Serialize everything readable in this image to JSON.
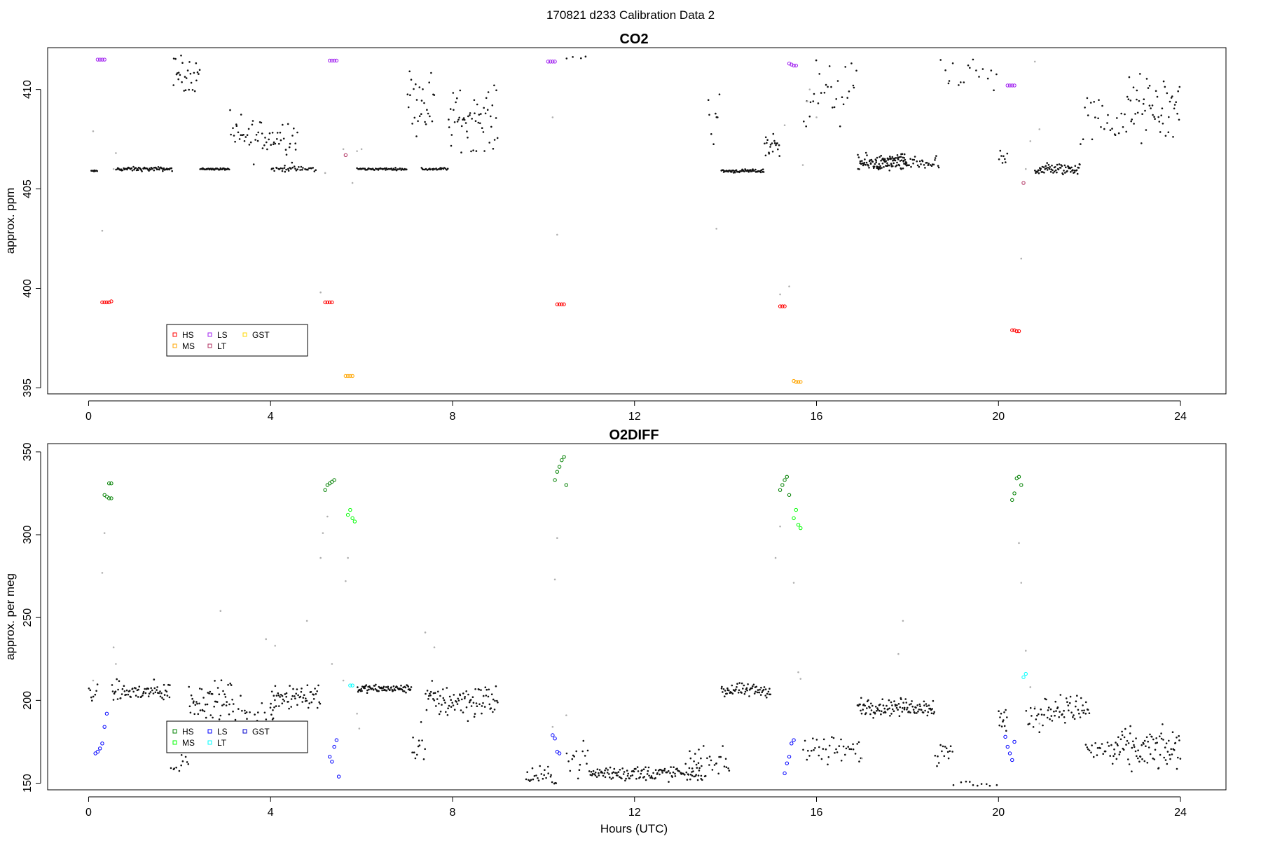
{
  "figure": {
    "title": "170821   d233   Calibration Data 2"
  },
  "legend_keys": [
    "HS",
    "MS",
    "LS",
    "LT",
    "GST"
  ],
  "chart_data": [
    {
      "type": "scatter",
      "title": "CO2",
      "xlabel": "",
      "ylabel": "approx. ppm",
      "xlim": [
        0,
        24
      ],
      "ylim": [
        394.7,
        412.1
      ],
      "xticks": [
        0,
        4,
        8,
        12,
        16,
        20,
        24
      ],
      "yticks": [
        395,
        400,
        405,
        410
      ],
      "legend": {
        "placement": "lower-left",
        "entries": [
          {
            "label": "HS",
            "color": "#ff0000"
          },
          {
            "label": "MS",
            "color": "#ffa500"
          },
          {
            "label": "LS",
            "color": "#a020f0"
          },
          {
            "label": "LT",
            "color": "#b03060"
          },
          {
            "label": "GST",
            "color": "#ffd700"
          }
        ]
      },
      "calibration_series": [
        {
          "name": "HS",
          "color": "#ff0000",
          "points": [
            [
              0.3,
              399.3
            ],
            [
              0.35,
              399.3
            ],
            [
              0.4,
              399.3
            ],
            [
              0.45,
              399.3
            ],
            [
              0.5,
              399.35
            ],
            [
              5.2,
              399.3
            ],
            [
              5.25,
              399.3
            ],
            [
              5.3,
              399.3
            ],
            [
              5.35,
              399.3
            ],
            [
              10.3,
              399.2
            ],
            [
              10.35,
              399.2
            ],
            [
              10.4,
              399.2
            ],
            [
              10.45,
              399.2
            ],
            [
              15.2,
              399.1
            ],
            [
              15.25,
              399.1
            ],
            [
              15.3,
              399.1
            ],
            [
              20.3,
              397.9
            ],
            [
              20.35,
              397.9
            ],
            [
              20.4,
              397.85
            ],
            [
              20.45,
              397.85
            ]
          ]
        },
        {
          "name": "MS",
          "color": "#ffa500",
          "points": [
            [
              5.65,
              395.6
            ],
            [
              5.7,
              395.6
            ],
            [
              5.75,
              395.6
            ],
            [
              5.8,
              395.6
            ],
            [
              15.5,
              395.35
            ],
            [
              15.55,
              395.3
            ],
            [
              15.6,
              395.3
            ],
            [
              15.65,
              395.3
            ]
          ]
        },
        {
          "name": "LS",
          "color": "#a020f0",
          "points": [
            [
              0.2,
              411.5
            ],
            [
              0.25,
              411.5
            ],
            [
              0.3,
              411.5
            ],
            [
              0.35,
              411.5
            ],
            [
              5.3,
              411.45
            ],
            [
              5.35,
              411.45
            ],
            [
              5.4,
              411.45
            ],
            [
              5.45,
              411.45
            ],
            [
              10.1,
              411.4
            ],
            [
              10.15,
              411.4
            ],
            [
              10.2,
              411.4
            ],
            [
              10.25,
              411.4
            ],
            [
              15.4,
              411.3
            ],
            [
              15.45,
              411.25
            ],
            [
              15.5,
              411.2
            ],
            [
              15.55,
              411.2
            ],
            [
              20.2,
              410.2
            ],
            [
              20.25,
              410.2
            ],
            [
              20.3,
              410.2
            ],
            [
              20.35,
              410.2
            ]
          ]
        },
        {
          "name": "LT",
          "color": "#b03060",
          "points": [
            [
              5.65,
              406.7
            ],
            [
              20.55,
              405.3
            ]
          ]
        }
      ],
      "ambient_segments": [
        {
          "t0": 0.05,
          "t1": 0.2,
          "base": 405.9,
          "spread": 0.05,
          "n": 8
        },
        {
          "t0": 0.6,
          "t1": 1.85,
          "base": 406.0,
          "spread": 0.15,
          "n": 70
        },
        {
          "t0": 1.85,
          "t1": 2.45,
          "base": 410.8,
          "spread": 1.3,
          "n": 28
        },
        {
          "t0": 2.45,
          "t1": 3.1,
          "base": 406.0,
          "spread": 0.07,
          "n": 40
        },
        {
          "t0": 3.1,
          "t1": 4.6,
          "base": 407.6,
          "spread": 1.7,
          "n": 60
        },
        {
          "t0": 4.0,
          "t1": 5.0,
          "base": 406.0,
          "spread": 0.2,
          "n": 38
        },
        {
          "t0": 5.9,
          "t1": 7.0,
          "base": 406.0,
          "spread": 0.08,
          "n": 55
        },
        {
          "t0": 7.0,
          "t1": 7.6,
          "base": 409.5,
          "spread": 2.3,
          "n": 28
        },
        {
          "t0": 7.3,
          "t1": 7.9,
          "base": 406.0,
          "spread": 0.1,
          "n": 26
        },
        {
          "t0": 7.9,
          "t1": 9.0,
          "base": 408.5,
          "spread": 2.2,
          "n": 55
        },
        {
          "t0": 10.5,
          "t1": 11.0,
          "base": 411.6,
          "spread": 0.2,
          "n": 4
        },
        {
          "t0": 13.6,
          "t1": 13.9,
          "base": 409.0,
          "spread": 2.5,
          "n": 8
        },
        {
          "t0": 13.9,
          "t1": 14.85,
          "base": 405.9,
          "spread": 0.12,
          "n": 60
        },
        {
          "t0": 14.85,
          "t1": 15.2,
          "base": 407.2,
          "spread": 1.2,
          "n": 20
        },
        {
          "t0": 15.7,
          "t1": 16.9,
          "base": 409.8,
          "spread": 2.3,
          "n": 30
        },
        {
          "t0": 16.9,
          "t1": 18.0,
          "base": 406.3,
          "spread": 0.6,
          "n": 90
        },
        {
          "t0": 17.3,
          "t1": 18.7,
          "base": 406.3,
          "spread": 0.6,
          "n": 60
        },
        {
          "t0": 18.7,
          "t1": 20.0,
          "base": 410.5,
          "spread": 1.5,
          "n": 18
        },
        {
          "t0": 20.0,
          "t1": 20.2,
          "base": 406.5,
          "spread": 0.8,
          "n": 8
        },
        {
          "t0": 20.8,
          "t1": 21.8,
          "base": 406.0,
          "spread": 0.45,
          "n": 70
        },
        {
          "t0": 21.8,
          "t1": 22.8,
          "base": 408.5,
          "spread": 2.0,
          "n": 25
        },
        {
          "t0": 22.8,
          "t1": 24.0,
          "base": 409.0,
          "spread": 2.5,
          "n": 55
        }
      ],
      "transition_points": [
        [
          0.1,
          407.9
        ],
        [
          0.3,
          402.9
        ],
        [
          0.55,
          406.0
        ],
        [
          0.6,
          406.8
        ],
        [
          5.1,
          399.8
        ],
        [
          5.2,
          405.8
        ],
        [
          5.6,
          407.0
        ],
        [
          5.8,
          405.3
        ],
        [
          5.9,
          406.9
        ],
        [
          6.0,
          407.0
        ],
        [
          10.2,
          408.6
        ],
        [
          10.3,
          402.7
        ],
        [
          13.8,
          403.0
        ],
        [
          15.2,
          399.7
        ],
        [
          15.3,
          408.2
        ],
        [
          15.4,
          400.1
        ],
        [
          15.7,
          406.2
        ],
        [
          15.8,
          409.4
        ],
        [
          15.85,
          410.0
        ],
        [
          16.0,
          408.6
        ],
        [
          20.5,
          401.5
        ],
        [
          20.6,
          406.0
        ],
        [
          20.7,
          407.4
        ],
        [
          20.8,
          411.4
        ],
        [
          20.9,
          408.0
        ]
      ]
    },
    {
      "type": "scatter",
      "title": "O2DIFF",
      "xlabel": "Hours (UTC)",
      "ylabel": "approx. per meg",
      "xlim": [
        -0.9,
        25.0
      ],
      "ylim": [
        146,
        355
      ],
      "xticks": [
        0,
        4,
        8,
        12,
        16,
        20,
        24
      ],
      "yticks": [
        150,
        200,
        250,
        300,
        350
      ],
      "legend": {
        "placement": "lower-left",
        "entries": [
          {
            "label": "HS",
            "color": "#008000"
          },
          {
            "label": "MS",
            "color": "#00ff00"
          },
          {
            "label": "LS",
            "color": "#0000ff"
          },
          {
            "label": "LT",
            "color": "#00ffff"
          },
          {
            "label": "GST",
            "color": "#0000cd"
          }
        ]
      },
      "calibration_series": [
        {
          "name": "HS",
          "color": "#008000",
          "points": [
            [
              0.35,
              324
            ],
            [
              0.4,
              323
            ],
            [
              0.45,
              322
            ],
            [
              0.5,
              322
            ],
            [
              0.45,
              331
            ],
            [
              0.5,
              331
            ],
            [
              5.2,
              327
            ],
            [
              5.25,
              330
            ],
            [
              5.3,
              331
            ],
            [
              5.35,
              332
            ],
            [
              5.4,
              333
            ],
            [
              10.25,
              333
            ],
            [
              10.3,
              338
            ],
            [
              10.35,
              341
            ],
            [
              10.4,
              345
            ],
            [
              10.45,
              347
            ],
            [
              10.5,
              330
            ],
            [
              15.2,
              327
            ],
            [
              15.25,
              330
            ],
            [
              15.3,
              333
            ],
            [
              15.35,
              335
            ],
            [
              15.4,
              324
            ],
            [
              20.3,
              321
            ],
            [
              20.35,
              325
            ],
            [
              20.4,
              334
            ],
            [
              20.45,
              335
            ],
            [
              20.5,
              330
            ]
          ]
        },
        {
          "name": "MS",
          "color": "#00ff00",
          "points": [
            [
              5.7,
              312
            ],
            [
              5.75,
              315
            ],
            [
              5.8,
              310
            ],
            [
              5.85,
              308
            ],
            [
              15.5,
              310
            ],
            [
              15.55,
              315
            ],
            [
              15.6,
              306
            ],
            [
              15.65,
              304
            ]
          ]
        },
        {
          "name": "LS",
          "color": "#0000ff",
          "points": [
            [
              0.15,
              168
            ],
            [
              0.2,
              169
            ],
            [
              0.25,
              171
            ],
            [
              0.3,
              174
            ],
            [
              0.35,
              184
            ],
            [
              0.4,
              192
            ],
            [
              5.3,
              166
            ],
            [
              5.35,
              163
            ],
            [
              5.4,
              172
            ],
            [
              5.45,
              176
            ],
            [
              5.5,
              154
            ],
            [
              10.2,
              179
            ],
            [
              10.25,
              177
            ],
            [
              10.3,
              169
            ],
            [
              10.35,
              168
            ],
            [
              15.3,
              156
            ],
            [
              15.35,
              162
            ],
            [
              15.4,
              166
            ],
            [
              15.45,
              174
            ],
            [
              15.5,
              176
            ],
            [
              20.15,
              178
            ],
            [
              20.2,
              172
            ],
            [
              20.25,
              168
            ],
            [
              20.3,
              164
            ],
            [
              20.35,
              175
            ]
          ]
        },
        {
          "name": "LT",
          "color": "#00ffff",
          "points": [
            [
              5.75,
              209
            ],
            [
              5.8,
              209
            ],
            [
              20.55,
              214
            ],
            [
              20.6,
              216
            ]
          ]
        }
      ],
      "ambient_segments": [
        {
          "t0": 0.0,
          "t1": 0.2,
          "base": 205,
          "spread": 9,
          "n": 8
        },
        {
          "t0": 0.5,
          "t1": 1.8,
          "base": 205,
          "spread": 9,
          "n": 70
        },
        {
          "t0": 1.8,
          "t1": 2.2,
          "base": 165,
          "spread": 15,
          "n": 15
        },
        {
          "t0": 2.2,
          "t1": 3.2,
          "base": 200,
          "spread": 16,
          "n": 55
        },
        {
          "t0": 3.2,
          "t1": 4.2,
          "base": 185,
          "spread": 25,
          "n": 50
        },
        {
          "t0": 4.0,
          "t1": 5.1,
          "base": 203,
          "spread": 14,
          "n": 60
        },
        {
          "t0": 5.9,
          "t1": 7.1,
          "base": 207,
          "spread": 3.5,
          "n": 85
        },
        {
          "t0": 7.1,
          "t1": 7.4,
          "base": 175,
          "spread": 20,
          "n": 12
        },
        {
          "t0": 7.4,
          "t1": 9.0,
          "base": 200,
          "spread": 16,
          "n": 90
        },
        {
          "t0": 9.6,
          "t1": 10.3,
          "base": 154,
          "spread": 8,
          "n": 25
        },
        {
          "t0": 10.5,
          "t1": 11.0,
          "base": 165,
          "spread": 14,
          "n": 15
        },
        {
          "t0": 11.0,
          "t1": 13.5,
          "base": 156,
          "spread": 7,
          "n": 140
        },
        {
          "t0": 13.2,
          "t1": 14.1,
          "base": 163,
          "spread": 12,
          "n": 30
        },
        {
          "t0": 13.9,
          "t1": 15.0,
          "base": 206,
          "spread": 6,
          "n": 65
        },
        {
          "t0": 15.7,
          "t1": 17.0,
          "base": 170,
          "spread": 15,
          "n": 40
        },
        {
          "t0": 16.9,
          "t1": 18.6,
          "base": 196,
          "spread": 7.5,
          "n": 110
        },
        {
          "t0": 18.6,
          "t1": 19.0,
          "base": 168,
          "spread": 14,
          "n": 15
        },
        {
          "t0": 19.0,
          "t1": 20.0,
          "base": 150,
          "spread": 4,
          "n": 10
        },
        {
          "t0": 20.0,
          "t1": 20.2,
          "base": 188,
          "spread": 12,
          "n": 12
        },
        {
          "t0": 20.6,
          "t1": 21.0,
          "base": 190,
          "spread": 12,
          "n": 14
        },
        {
          "t0": 21.0,
          "t1": 22.0,
          "base": 195,
          "spread": 12,
          "n": 50
        },
        {
          "t0": 21.9,
          "t1": 22.5,
          "base": 170,
          "spread": 12,
          "n": 20
        },
        {
          "t0": 22.5,
          "t1": 24.0,
          "base": 170,
          "spread": 18,
          "n": 90
        }
      ],
      "transition_points": [
        [
          0.1,
          212
        ],
        [
          0.3,
          277
        ],
        [
          0.35,
          301
        ],
        [
          0.55,
          232
        ],
        [
          0.6,
          222
        ],
        [
          2.9,
          254
        ],
        [
          3.9,
          237
        ],
        [
          4.1,
          233
        ],
        [
          4.8,
          248
        ],
        [
          5.1,
          286
        ],
        [
          5.15,
          301
        ],
        [
          5.25,
          311
        ],
        [
          5.35,
          222
        ],
        [
          5.6,
          212
        ],
        [
          5.65,
          272
        ],
        [
          5.7,
          286
        ],
        [
          5.9,
          192
        ],
        [
          5.95,
          183
        ],
        [
          7.4,
          241
        ],
        [
          7.6,
          232
        ],
        [
          10.2,
          184
        ],
        [
          10.25,
          273
        ],
        [
          10.3,
          298
        ],
        [
          10.5,
          191
        ],
        [
          15.1,
          286
        ],
        [
          15.2,
          305
        ],
        [
          15.5,
          271
        ],
        [
          15.6,
          217
        ],
        [
          15.65,
          213
        ],
        [
          17.0,
          165
        ],
        [
          17.9,
          248
        ],
        [
          17.8,
          228
        ],
        [
          20.45,
          295
        ],
        [
          20.5,
          271
        ],
        [
          20.6,
          230
        ],
        [
          20.7,
          208
        ],
        [
          20.8,
          196
        ],
        [
          20.9,
          186
        ]
      ]
    }
  ]
}
